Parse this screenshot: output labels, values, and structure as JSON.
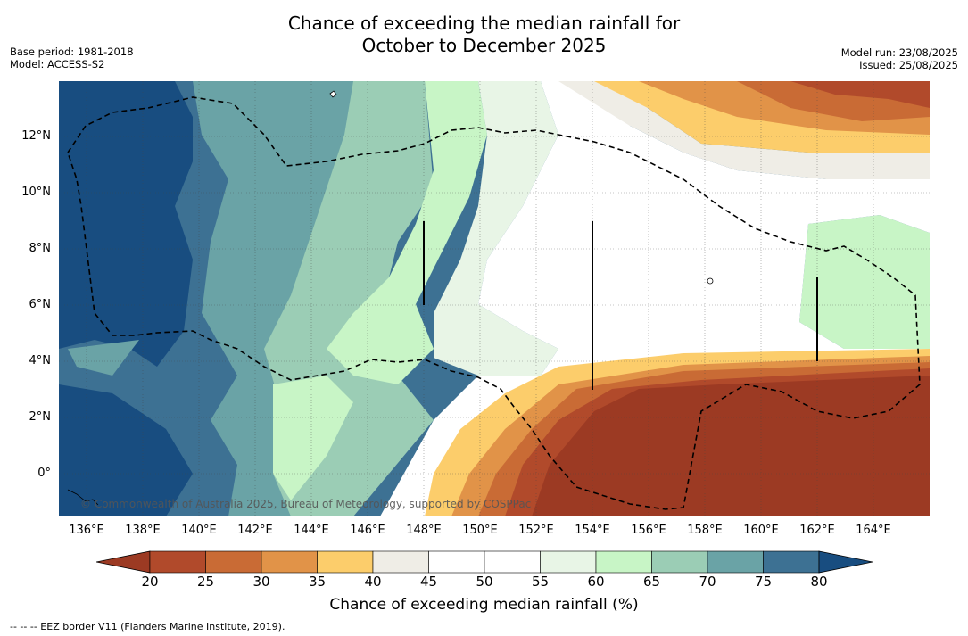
{
  "title": {
    "line1": "Chance of exceeding the median rainfall for",
    "line2": "October to December 2025"
  },
  "meta_left": {
    "base_period": "Base period: 1981-2018",
    "model": "Model: ACCESS-S2"
  },
  "meta_right": {
    "model_run": "Model run: 23/08/2025",
    "issued": "Issued: 25/08/2025"
  },
  "map": {
    "lat_labels": [
      "12°N",
      "10°N",
      "8°N",
      "6°N",
      "4°N",
      "2°N",
      "0°"
    ],
    "lon_labels": [
      "136°E",
      "138°E",
      "140°E",
      "142°E",
      "144°E",
      "146°E",
      "148°E",
      "150°E",
      "152°E",
      "154°E",
      "156°E",
      "158°E",
      "160°E",
      "162°E",
      "164°E"
    ],
    "copyright": "© Commonwealth of Australia 2025, Bureau of Meteorology, supported by COSPPac"
  },
  "colorbar": {
    "ticks": [
      "20",
      "25",
      "30",
      "35",
      "40",
      "45",
      "50",
      "55",
      "60",
      "65",
      "70",
      "75",
      "80"
    ],
    "colors": [
      "#9c3a23",
      "#b14a2b",
      "#c96b35",
      "#e19348",
      "#fccd6b",
      "#efede6",
      "#ffffff",
      "#fbfdfb",
      "#e8f5e6",
      "#c8f5c6",
      "#9bcdb5",
      "#6aa3a6",
      "#3d7193",
      "#184d80"
    ],
    "label": "Chance of exceeding median rainfall (%)"
  },
  "footnote": "--  --  -- EEZ border V11 (Flanders Marine Institute, 2019)."
}
